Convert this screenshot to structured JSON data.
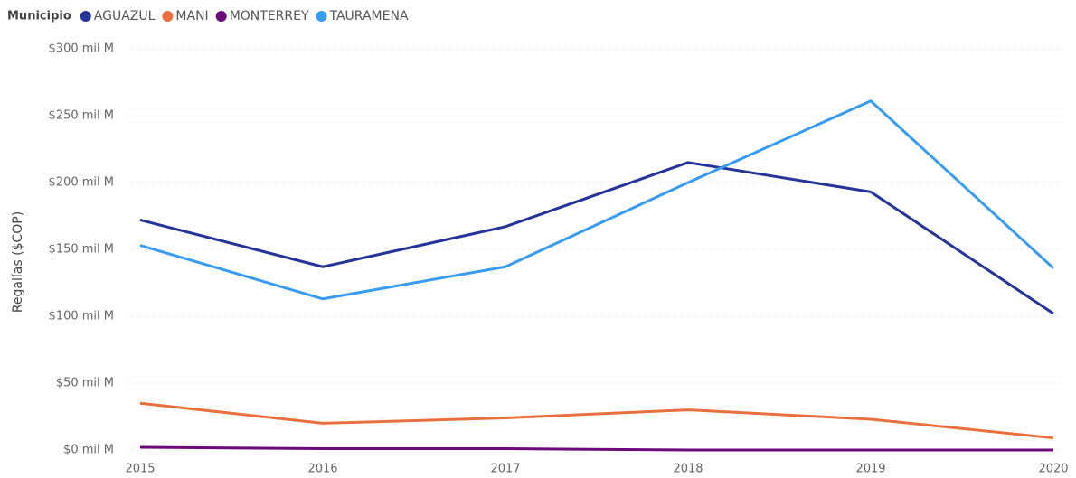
{
  "chart_data": {
    "type": "line",
    "legend_title": "Municipio",
    "y_label": "Regalías ($COP)",
    "categories": [
      "2015",
      "2016",
      "2017",
      "2018",
      "2019",
      "2020"
    ],
    "series": [
      {
        "name": "AGUAZUL",
        "color": "#26349a",
        "values": [
          172,
          137,
          167,
          215,
          193,
          102
        ]
      },
      {
        "name": "MANI",
        "color": "#e8703e",
        "values": [
          35,
          20,
          24,
          30,
          23,
          9
        ]
      },
      {
        "name": "MONTERREY",
        "color": "#6c0a7c",
        "values": [
          2,
          1,
          1,
          0,
          0,
          0
        ]
      },
      {
        "name": "TAURAMENA",
        "color": "#3a9cf0",
        "values": [
          153,
          113,
          137,
          200,
          261,
          136
        ]
      }
    ],
    "ylim": [
      0,
      300
    ],
    "yticks": [
      {
        "value": 0,
        "label": "$0 mil M"
      },
      {
        "value": 50,
        "label": "$50 mil M"
      },
      {
        "value": 100,
        "label": "$100 mil M"
      },
      {
        "value": 150,
        "label": "$150 mil M"
      },
      {
        "value": 200,
        "label": "$200 mil M"
      },
      {
        "value": 250,
        "label": "$250 mil M"
      },
      {
        "value": 300,
        "label": "$300 mil M"
      }
    ],
    "grid": true,
    "legend": "top-left"
  }
}
